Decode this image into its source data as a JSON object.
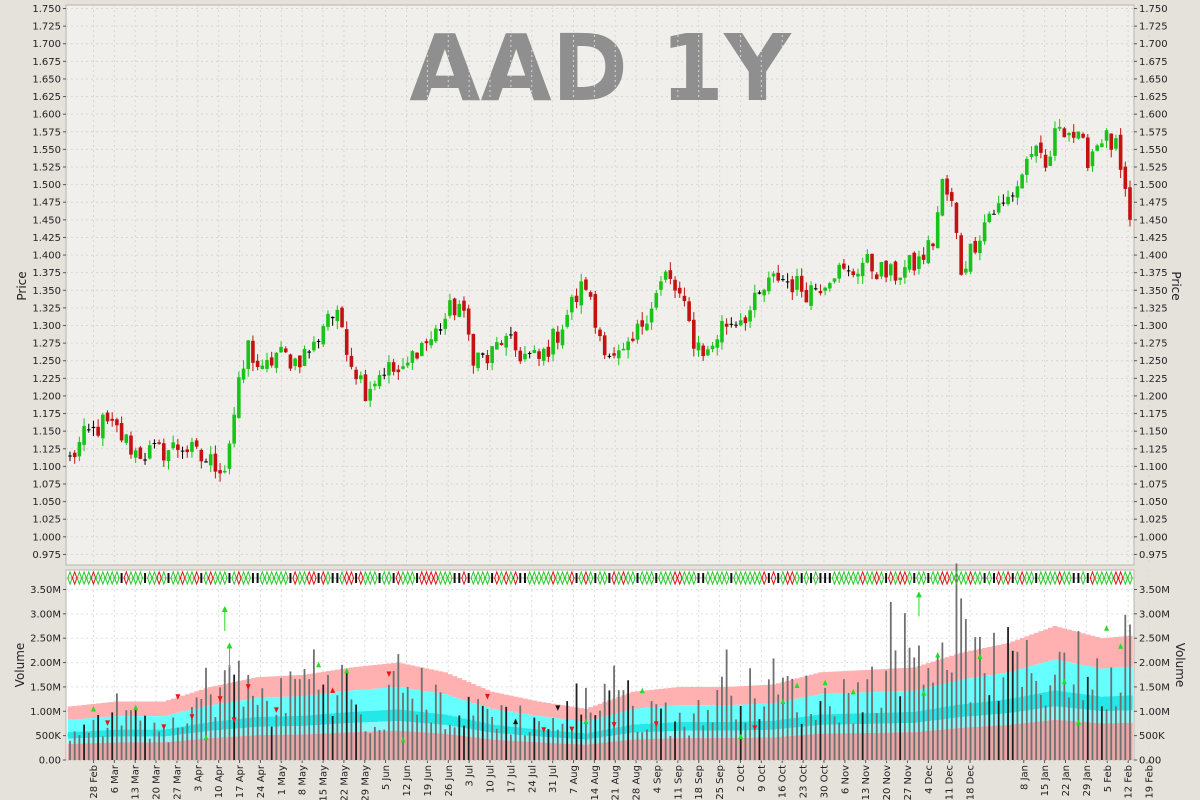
{
  "chart_data": [
    {
      "type": "ohlc",
      "title": "AAD 1Y",
      "ylabel": "Price",
      "ylim": [
        0.96,
        1.755
      ],
      "yticks": [
        "0.975",
        "1.000",
        "1.025",
        "1.050",
        "1.075",
        "1.100",
        "1.125",
        "1.150",
        "1.175",
        "1.200",
        "1.225",
        "1.250",
        "1.275",
        "1.300",
        "1.325",
        "1.350",
        "1.375",
        "1.400",
        "1.425",
        "1.450",
        "1.475",
        "1.500",
        "1.525",
        "1.550",
        "1.575",
        "1.600",
        "1.625",
        "1.650",
        "1.675",
        "1.700",
        "1.725",
        "1.750"
      ],
      "series_close_approx": [
        [
          0,
          1.11
        ],
        [
          3,
          1.14
        ],
        [
          7,
          1.16
        ],
        [
          10,
          1.15
        ],
        [
          14,
          1.12
        ],
        [
          19,
          1.12
        ],
        [
          24,
          1.13
        ],
        [
          28,
          1.11
        ],
        [
          33,
          1.1
        ],
        [
          36,
          1.21
        ],
        [
          38,
          1.27
        ],
        [
          41,
          1.23
        ],
        [
          44,
          1.26
        ],
        [
          48,
          1.25
        ],
        [
          52,
          1.27
        ],
        [
          55,
          1.32
        ],
        [
          58,
          1.3
        ],
        [
          60,
          1.25
        ],
        [
          63,
          1.21
        ],
        [
          67,
          1.24
        ],
        [
          71,
          1.23
        ],
        [
          74,
          1.27
        ],
        [
          77,
          1.28
        ],
        [
          81,
          1.32
        ],
        [
          83,
          1.33
        ],
        [
          86,
          1.26
        ],
        [
          89,
          1.25
        ],
        [
          92,
          1.28
        ],
        [
          96,
          1.26
        ],
        [
          100,
          1.25
        ],
        [
          104,
          1.29
        ],
        [
          107,
          1.33
        ],
        [
          110,
          1.36
        ],
        [
          112,
          1.3
        ],
        [
          116,
          1.25
        ],
        [
          119,
          1.26
        ],
        [
          123,
          1.32
        ],
        [
          127,
          1.37
        ],
        [
          130,
          1.34
        ],
        [
          133,
          1.28
        ],
        [
          136,
          1.26
        ],
        [
          139,
          1.3
        ],
        [
          142,
          1.31
        ],
        [
          145,
          1.32
        ],
        [
          148,
          1.35
        ],
        [
          151,
          1.37
        ],
        [
          154,
          1.36
        ],
        [
          157,
          1.35
        ],
        [
          160,
          1.36
        ],
        [
          163,
          1.38
        ],
        [
          166,
          1.37
        ],
        [
          169,
          1.39
        ],
        [
          172,
          1.38
        ],
        [
          175,
          1.37
        ],
        [
          178,
          1.38
        ],
        [
          181,
          1.39
        ],
        [
          184,
          1.42
        ],
        [
          186,
          1.5
        ],
        [
          188,
          1.47
        ],
        [
          190,
          1.38
        ],
        [
          193,
          1.42
        ],
        [
          196,
          1.46
        ],
        [
          199,
          1.47
        ],
        [
          202,
          1.5
        ],
        [
          205,
          1.55
        ],
        [
          208,
          1.52
        ],
        [
          211,
          1.59
        ],
        [
          214,
          1.57
        ],
        [
          217,
          1.54
        ],
        [
          220,
          1.57
        ],
        [
          223,
          1.55
        ],
        [
          226,
          1.44
        ]
      ]
    },
    {
      "type": "bar",
      "ylabel": "Volume",
      "ylim": [
        0,
        3.9
      ],
      "yticks": [
        "0.00",
        "500K",
        "1.00M",
        "1.50M",
        "2.00M",
        "2.50M",
        "3.00M",
        "3.50M"
      ],
      "x_dates": [
        "28 Feb",
        "6 Mar",
        "13 Mar",
        "20 Mar",
        "27 Mar",
        "3 Apr",
        "10 Apr",
        "17 Apr",
        "24 Apr",
        "1 May",
        "8 May",
        "15 May",
        "22 May",
        "29 May",
        "5 Jun",
        "12 Jun",
        "19 Jun",
        "26 Jun",
        "3 Jul",
        "10 Jul",
        "17 Jul",
        "24 Jul",
        "31 Jul",
        "7 Aug",
        "14 Aug",
        "21 Aug",
        "28 Aug",
        "4 Sep",
        "11 Sep",
        "18 Sep",
        "25 Sep",
        "2 Oct",
        "9 Oct",
        "16 Oct",
        "23 Oct",
        "30 Oct",
        "6 Nov",
        "13 Nov",
        "20 Nov",
        "27 Nov",
        "4 Dec",
        "11 Dec",
        "18 Dec",
        "8 Jan",
        "15 Jan",
        "22 Jan",
        "29 Jan",
        "5 Feb",
        "12 Feb",
        "19 Feb"
      ],
      "avg_volume_M": [
        [
          0,
          1.1
        ],
        [
          10,
          1.2
        ],
        [
          20,
          1.2
        ],
        [
          30,
          1.5
        ],
        [
          40,
          1.7
        ],
        [
          50,
          1.75
        ],
        [
          60,
          1.9
        ],
        [
          70,
          2.0
        ],
        [
          80,
          1.8
        ],
        [
          90,
          1.4
        ],
        [
          100,
          1.2
        ],
        [
          110,
          1.05
        ],
        [
          120,
          1.4
        ],
        [
          130,
          1.5
        ],
        [
          140,
          1.5
        ],
        [
          150,
          1.55
        ],
        [
          160,
          1.8
        ],
        [
          170,
          1.85
        ],
        [
          180,
          1.9
        ],
        [
          190,
          2.2
        ],
        [
          200,
          2.4
        ],
        [
          210,
          2.75
        ],
        [
          220,
          2.5
        ],
        [
          226,
          2.55
        ]
      ],
      "volume_M_approx": [
        [
          0,
          0.8
        ],
        [
          3,
          1.1
        ],
        [
          7,
          0.7
        ],
        [
          10,
          1.3
        ],
        [
          14,
          0.9
        ],
        [
          19,
          0.8
        ],
        [
          24,
          0.7
        ],
        [
          28,
          1.6
        ],
        [
          31,
          1.8
        ],
        [
          33,
          2.3
        ],
        [
          38,
          1.6
        ],
        [
          44,
          1.3
        ],
        [
          48,
          1.9
        ],
        [
          52,
          2.2
        ],
        [
          55,
          2.1
        ],
        [
          60,
          1.6
        ],
        [
          64,
          0.5
        ],
        [
          70,
          1.9
        ],
        [
          77,
          1.5
        ],
        [
          83,
          1.0
        ],
        [
          88,
          1.3
        ],
        [
          93,
          1.1
        ],
        [
          100,
          0.9
        ],
        [
          104,
          0.8
        ],
        [
          108,
          1.4
        ],
        [
          112,
          1.4
        ],
        [
          116,
          2.3
        ],
        [
          120,
          1.1
        ],
        [
          125,
          1.2
        ],
        [
          130,
          1.0
        ],
        [
          135,
          1.1
        ],
        [
          140,
          2.0
        ],
        [
          145,
          1.6
        ],
        [
          150,
          1.8
        ],
        [
          155,
          1.6
        ],
        [
          160,
          1.4
        ],
        [
          165,
          1.6
        ],
        [
          170,
          1.6
        ],
        [
          175,
          2.8
        ],
        [
          180,
          2.7
        ],
        [
          185,
          2.6
        ],
        [
          188,
          3.7
        ],
        [
          193,
          2.2
        ],
        [
          197,
          2.4
        ],
        [
          202,
          2.2
        ],
        [
          207,
          2.0
        ],
        [
          212,
          2.5
        ],
        [
          217,
          2.1
        ],
        [
          222,
          1.7
        ],
        [
          226,
          3.8
        ]
      ]
    }
  ]
}
